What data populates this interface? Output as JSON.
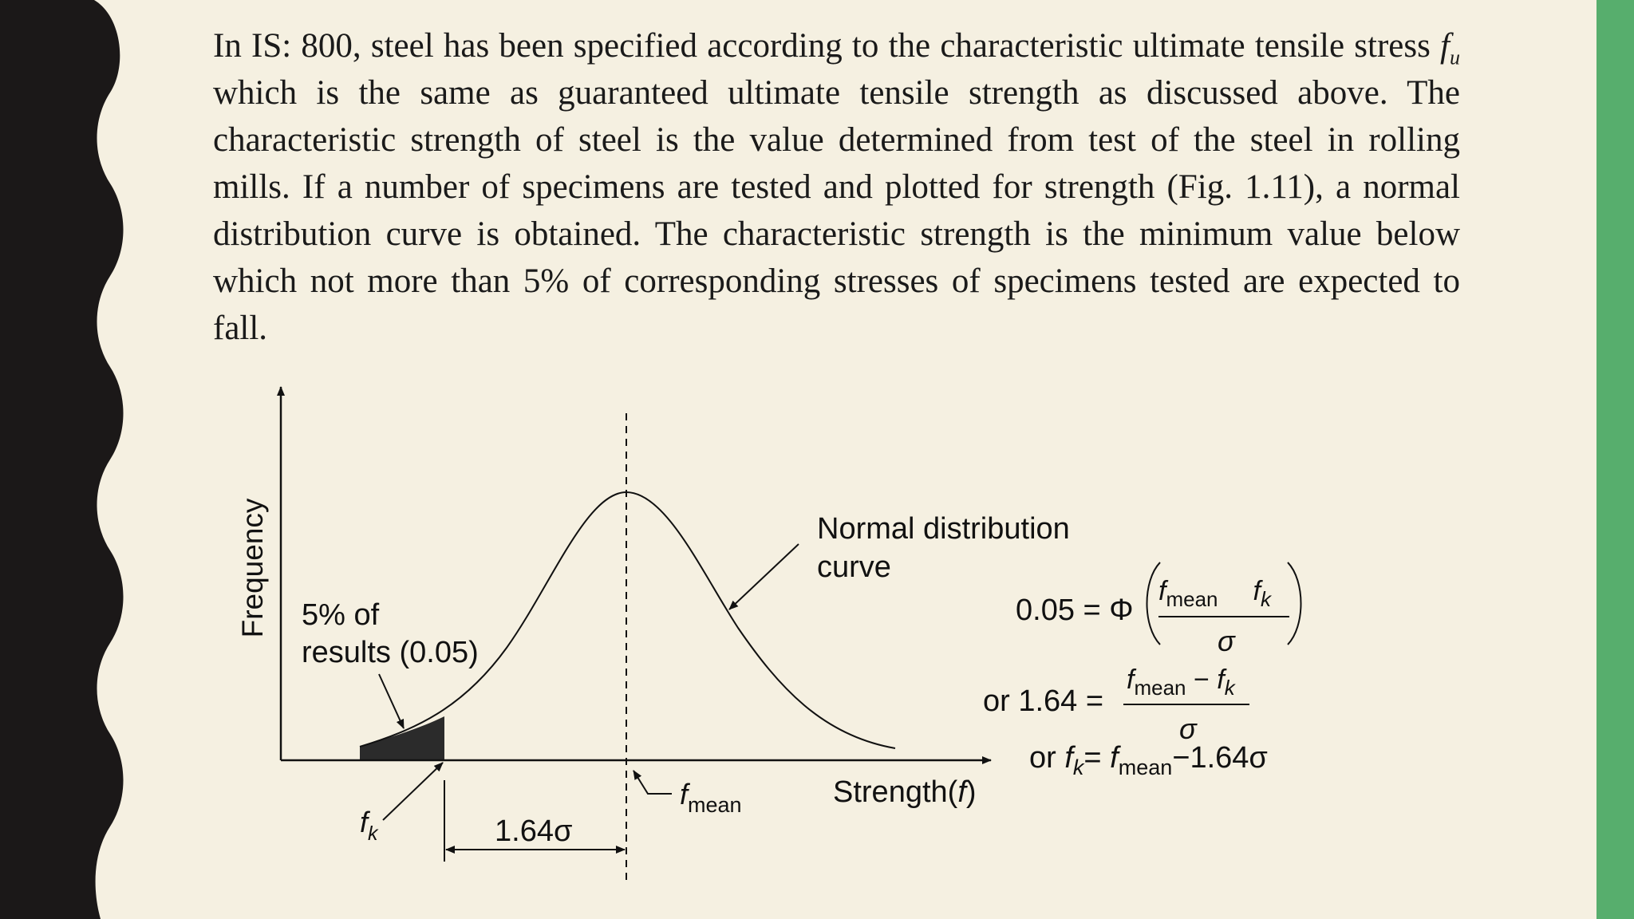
{
  "colors": {
    "page_background": "#f5f0e1",
    "left_decor": "#1b1818",
    "right_bar": "#57ae6d",
    "ink": "#111111"
  },
  "paragraph": {
    "part1": "In IS: 800, steel has been specified according to the characteristic ultimate tensile stress ",
    "var_f": "f",
    "var_sub_u": "u",
    "part2": " which is the same as guaranteed ultimate tensile strength as discussed above. The characteristic strength of steel is the value determined from test of the steel in rolling mills. If a number of specimens are tested and plotted for strength (Fig. 1.11), a normal distribution curve is obtained. The characteristic strength is the minimum value below which not more than 5% of corresponding stresses of specimens tested are expected to fall."
  },
  "figure": {
    "y_axis_label": "Frequency",
    "x_axis_label_text": "Strength(",
    "x_axis_label_var": "f",
    "x_axis_label_close": ")",
    "curve_label_line1": "Normal distribution",
    "curve_label_line2": "curve",
    "tail_label_line1": "5% of",
    "tail_label_line2": "results (0.05)",
    "fk_symbol": "f",
    "fk_sub": "k",
    "fmean_symbol": "f",
    "fmean_sub": "mean",
    "dimension_label": "1.64σ",
    "tail_fraction": 0.05,
    "z_value": 1.64
  },
  "equations": {
    "eq1_lhs": "0.05 = Φ",
    "eq1_num_f1": "f",
    "eq1_num_sub1": "mean",
    "eq1_num_f2": "f",
    "eq1_num_sub2": "k",
    "eq1_den": "σ",
    "eq2_lhs": "or 1.64 =",
    "eq2_num_f1": "f",
    "eq2_num_sub1": "mean",
    "eq2_num_minus": " − ",
    "eq2_num_f2": "f",
    "eq2_num_sub2": "k",
    "eq2_den": "σ",
    "eq3_or": "or ",
    "eq3_f1": "f",
    "eq3_sub1": "k",
    "eq3_eq": "= ",
    "eq3_f2": "f",
    "eq3_sub2": "mean",
    "eq3_tail": "−1.64σ"
  }
}
